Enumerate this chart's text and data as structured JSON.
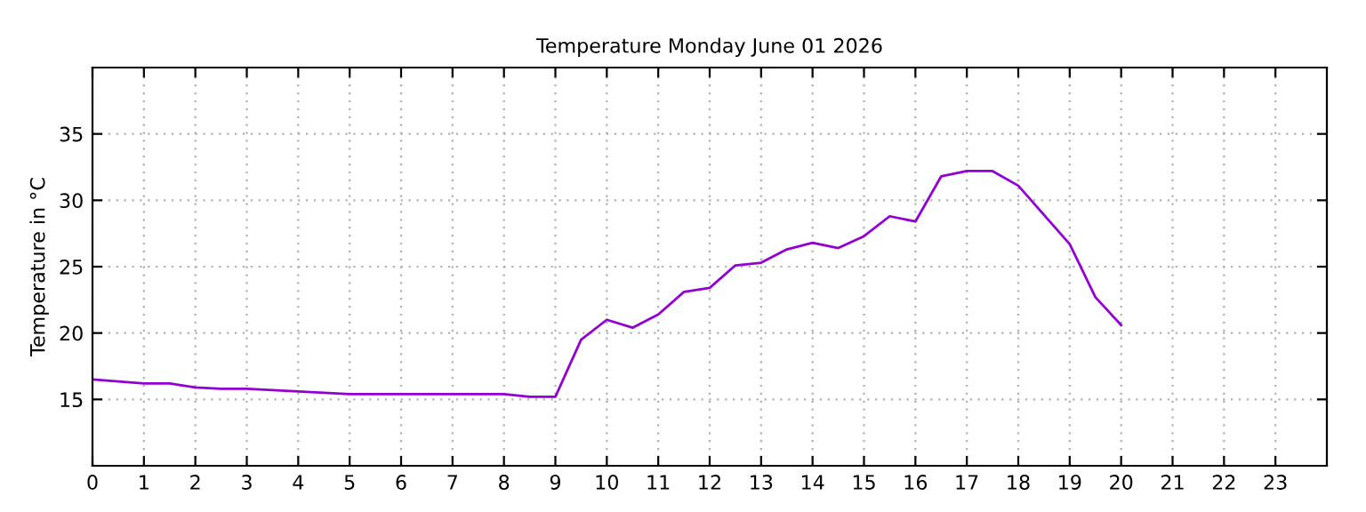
{
  "chart_data": {
    "type": "line",
    "title": "Temperature Monday June 01 2026",
    "ylabel": "Temperature in °C",
    "x": [
      0,
      1,
      1.5,
      2,
      2.5,
      3,
      4,
      5,
      6,
      7,
      8,
      8.5,
      9,
      9.5,
      10,
      10.5,
      11,
      11.5,
      12,
      12.5,
      13,
      13.5,
      14,
      14.5,
      15,
      15.5,
      16,
      16.5,
      17,
      17.5,
      18,
      19,
      19.5,
      20
    ],
    "series": [
      {
        "color": "#9400d3",
        "values": [
          16.5,
          16.2,
          16.2,
          15.9,
          15.8,
          15.8,
          15.6,
          15.4,
          15.4,
          15.4,
          15.4,
          15.2,
          15.2,
          19.5,
          21.0,
          20.4,
          21.4,
          23.1,
          23.4,
          25.1,
          25.3,
          26.3,
          26.8,
          26.4,
          27.3,
          28.8,
          28.4,
          31.8,
          32.2,
          32.2,
          31.1,
          26.7,
          22.7,
          20.6
        ]
      }
    ],
    "xlim": [
      0,
      24
    ],
    "xticks": [
      0,
      1,
      2,
      3,
      4,
      5,
      6,
      7,
      8,
      9,
      10,
      11,
      12,
      13,
      14,
      15,
      16,
      17,
      18,
      19,
      20,
      21,
      22,
      23
    ],
    "ylim": [
      10,
      40
    ],
    "yticks": [
      15,
      20,
      25,
      30,
      35
    ],
    "grid": true
  }
}
